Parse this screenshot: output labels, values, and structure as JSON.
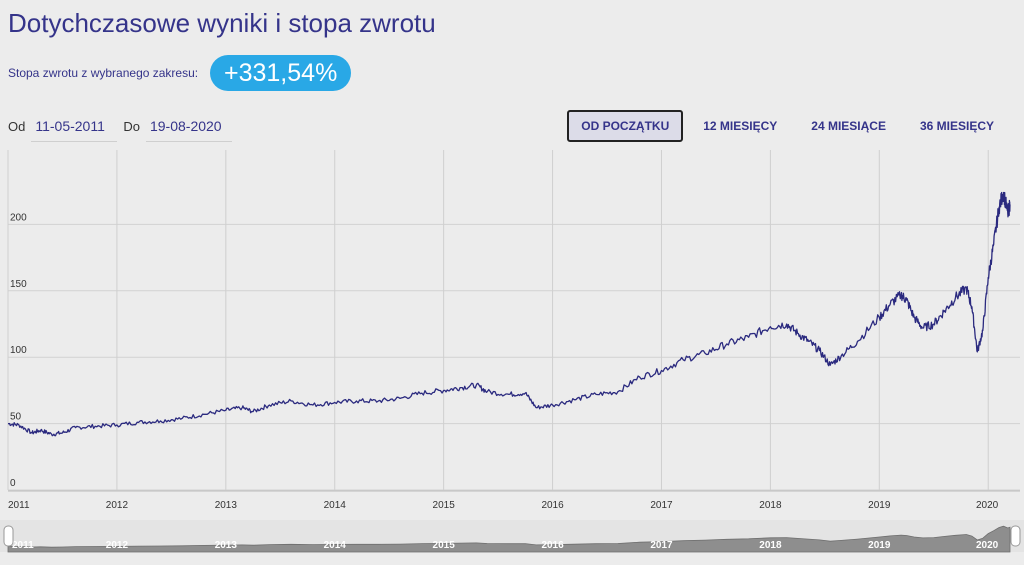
{
  "header": {
    "title": "Dotychczasowe wyniki i stopa zwrotu",
    "return_label": "Stopa zwrotu z wybranego zakresu:",
    "return_value": "+331,54%"
  },
  "date_range": {
    "from_label": "Od",
    "from_value": "11-05-2011",
    "to_label": "Do",
    "to_value": "19-08-2020"
  },
  "range_buttons": [
    {
      "label": "OD POCZĄTKU",
      "active": true
    },
    {
      "label": "12 MIESIĘCY",
      "active": false
    },
    {
      "label": "24 MIESIĄCE",
      "active": false
    },
    {
      "label": "36 MIESIĘCY",
      "active": false
    }
  ],
  "colors": {
    "line": "#2b2a7f",
    "accent": "#29a8e6",
    "navigator_fill": "#8e8e8e"
  },
  "chart_data": {
    "type": "line",
    "title": "",
    "xlabel": "",
    "ylabel": "",
    "x_range": [
      2011.0,
      2020.2
    ],
    "ylim": [
      0,
      250
    ],
    "yticks": [
      0,
      50,
      100,
      150,
      200
    ],
    "xticks": [
      "2011",
      "2012",
      "2013",
      "2014",
      "2015",
      "2016",
      "2017",
      "2018",
      "2019",
      "2020"
    ],
    "grid": true,
    "series": [
      {
        "points": [
          [
            2011.0,
            50
          ],
          [
            2011.1,
            49
          ],
          [
            2011.22,
            43
          ],
          [
            2011.3,
            45
          ],
          [
            2011.4,
            42
          ],
          [
            2011.5,
            43
          ],
          [
            2011.62,
            47
          ],
          [
            2011.8,
            48
          ],
          [
            2012.0,
            49
          ],
          [
            2012.2,
            51
          ],
          [
            2012.4,
            52
          ],
          [
            2012.6,
            54
          ],
          [
            2012.8,
            57
          ],
          [
            2013.0,
            60
          ],
          [
            2013.15,
            62
          ],
          [
            2013.25,
            59
          ],
          [
            2013.4,
            64
          ],
          [
            2013.6,
            67
          ],
          [
            2013.8,
            64
          ],
          [
            2014.0,
            66
          ],
          [
            2014.2,
            67
          ],
          [
            2014.4,
            67
          ],
          [
            2014.6,
            69
          ],
          [
            2014.8,
            73
          ],
          [
            2015.0,
            75
          ],
          [
            2015.15,
            77
          ],
          [
            2015.3,
            79
          ],
          [
            2015.4,
            74
          ],
          [
            2015.6,
            72
          ],
          [
            2015.75,
            73
          ],
          [
            2015.85,
            62
          ],
          [
            2016.0,
            64
          ],
          [
            2016.2,
            68
          ],
          [
            2016.4,
            72
          ],
          [
            2016.6,
            74
          ],
          [
            2016.8,
            85
          ],
          [
            2017.0,
            90
          ],
          [
            2017.2,
            98
          ],
          [
            2017.4,
            103
          ],
          [
            2017.6,
            110
          ],
          [
            2017.8,
            115
          ],
          [
            2018.0,
            123
          ],
          [
            2018.15,
            125
          ],
          [
            2018.25,
            118
          ],
          [
            2018.35,
            112
          ],
          [
            2018.45,
            105
          ],
          [
            2018.55,
            94
          ],
          [
            2018.65,
            101
          ],
          [
            2018.8,
            112
          ],
          [
            2019.0,
            130
          ],
          [
            2019.1,
            140
          ],
          [
            2019.2,
            147
          ],
          [
            2019.25,
            143
          ],
          [
            2019.32,
            130
          ],
          [
            2019.4,
            122
          ],
          [
            2019.5,
            125
          ],
          [
            2019.6,
            135
          ],
          [
            2019.7,
            145
          ],
          [
            2019.8,
            152
          ],
          [
            2019.85,
            138
          ],
          [
            2019.9,
            104
          ],
          [
            2019.95,
            120
          ],
          [
            2020.0,
            160
          ],
          [
            2020.05,
            185
          ],
          [
            2020.1,
            213
          ],
          [
            2020.14,
            224
          ],
          [
            2020.18,
            208
          ],
          [
            2020.2,
            215
          ]
        ]
      }
    ]
  }
}
